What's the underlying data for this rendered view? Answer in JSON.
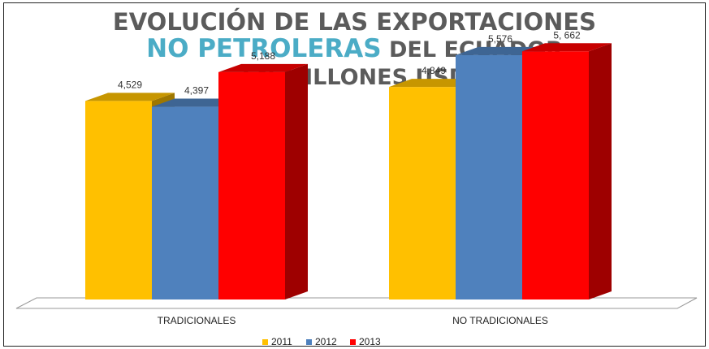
{
  "title": {
    "line1": "EVOLUCIÓN DE LAS EXPORTACIONES",
    "line2_highlight": "NO PETROLERAS",
    "line2_rest": " DEL ECUADOR",
    "line3": "EN MILLONES USD"
  },
  "colors": {
    "title_text": "#5b5b5b",
    "title_highlight": "#4bacc6",
    "series_2011": "#ffc000",
    "series_2012": "#4f81bd",
    "series_2013": "#ff0000"
  },
  "chart_data": {
    "type": "bar",
    "style": "3d-clustered-column",
    "categories": [
      "TRADICIONALES",
      "NO TRADICIONALES"
    ],
    "series": [
      {
        "name": "2011",
        "values": [
          4529,
          4849
        ],
        "labels": [
          "4,529",
          "4,849"
        ]
      },
      {
        "name": "2012",
        "values": [
          4397,
          5576
        ],
        "labels": [
          "4,397",
          "5,576"
        ]
      },
      {
        "name": "2013",
        "values": [
          5188,
          5662
        ],
        "labels": [
          "5,188",
          "5, 662"
        ]
      }
    ],
    "ylim": [
      0,
      6000
    ],
    "grid": false,
    "legend_position": "bottom"
  }
}
